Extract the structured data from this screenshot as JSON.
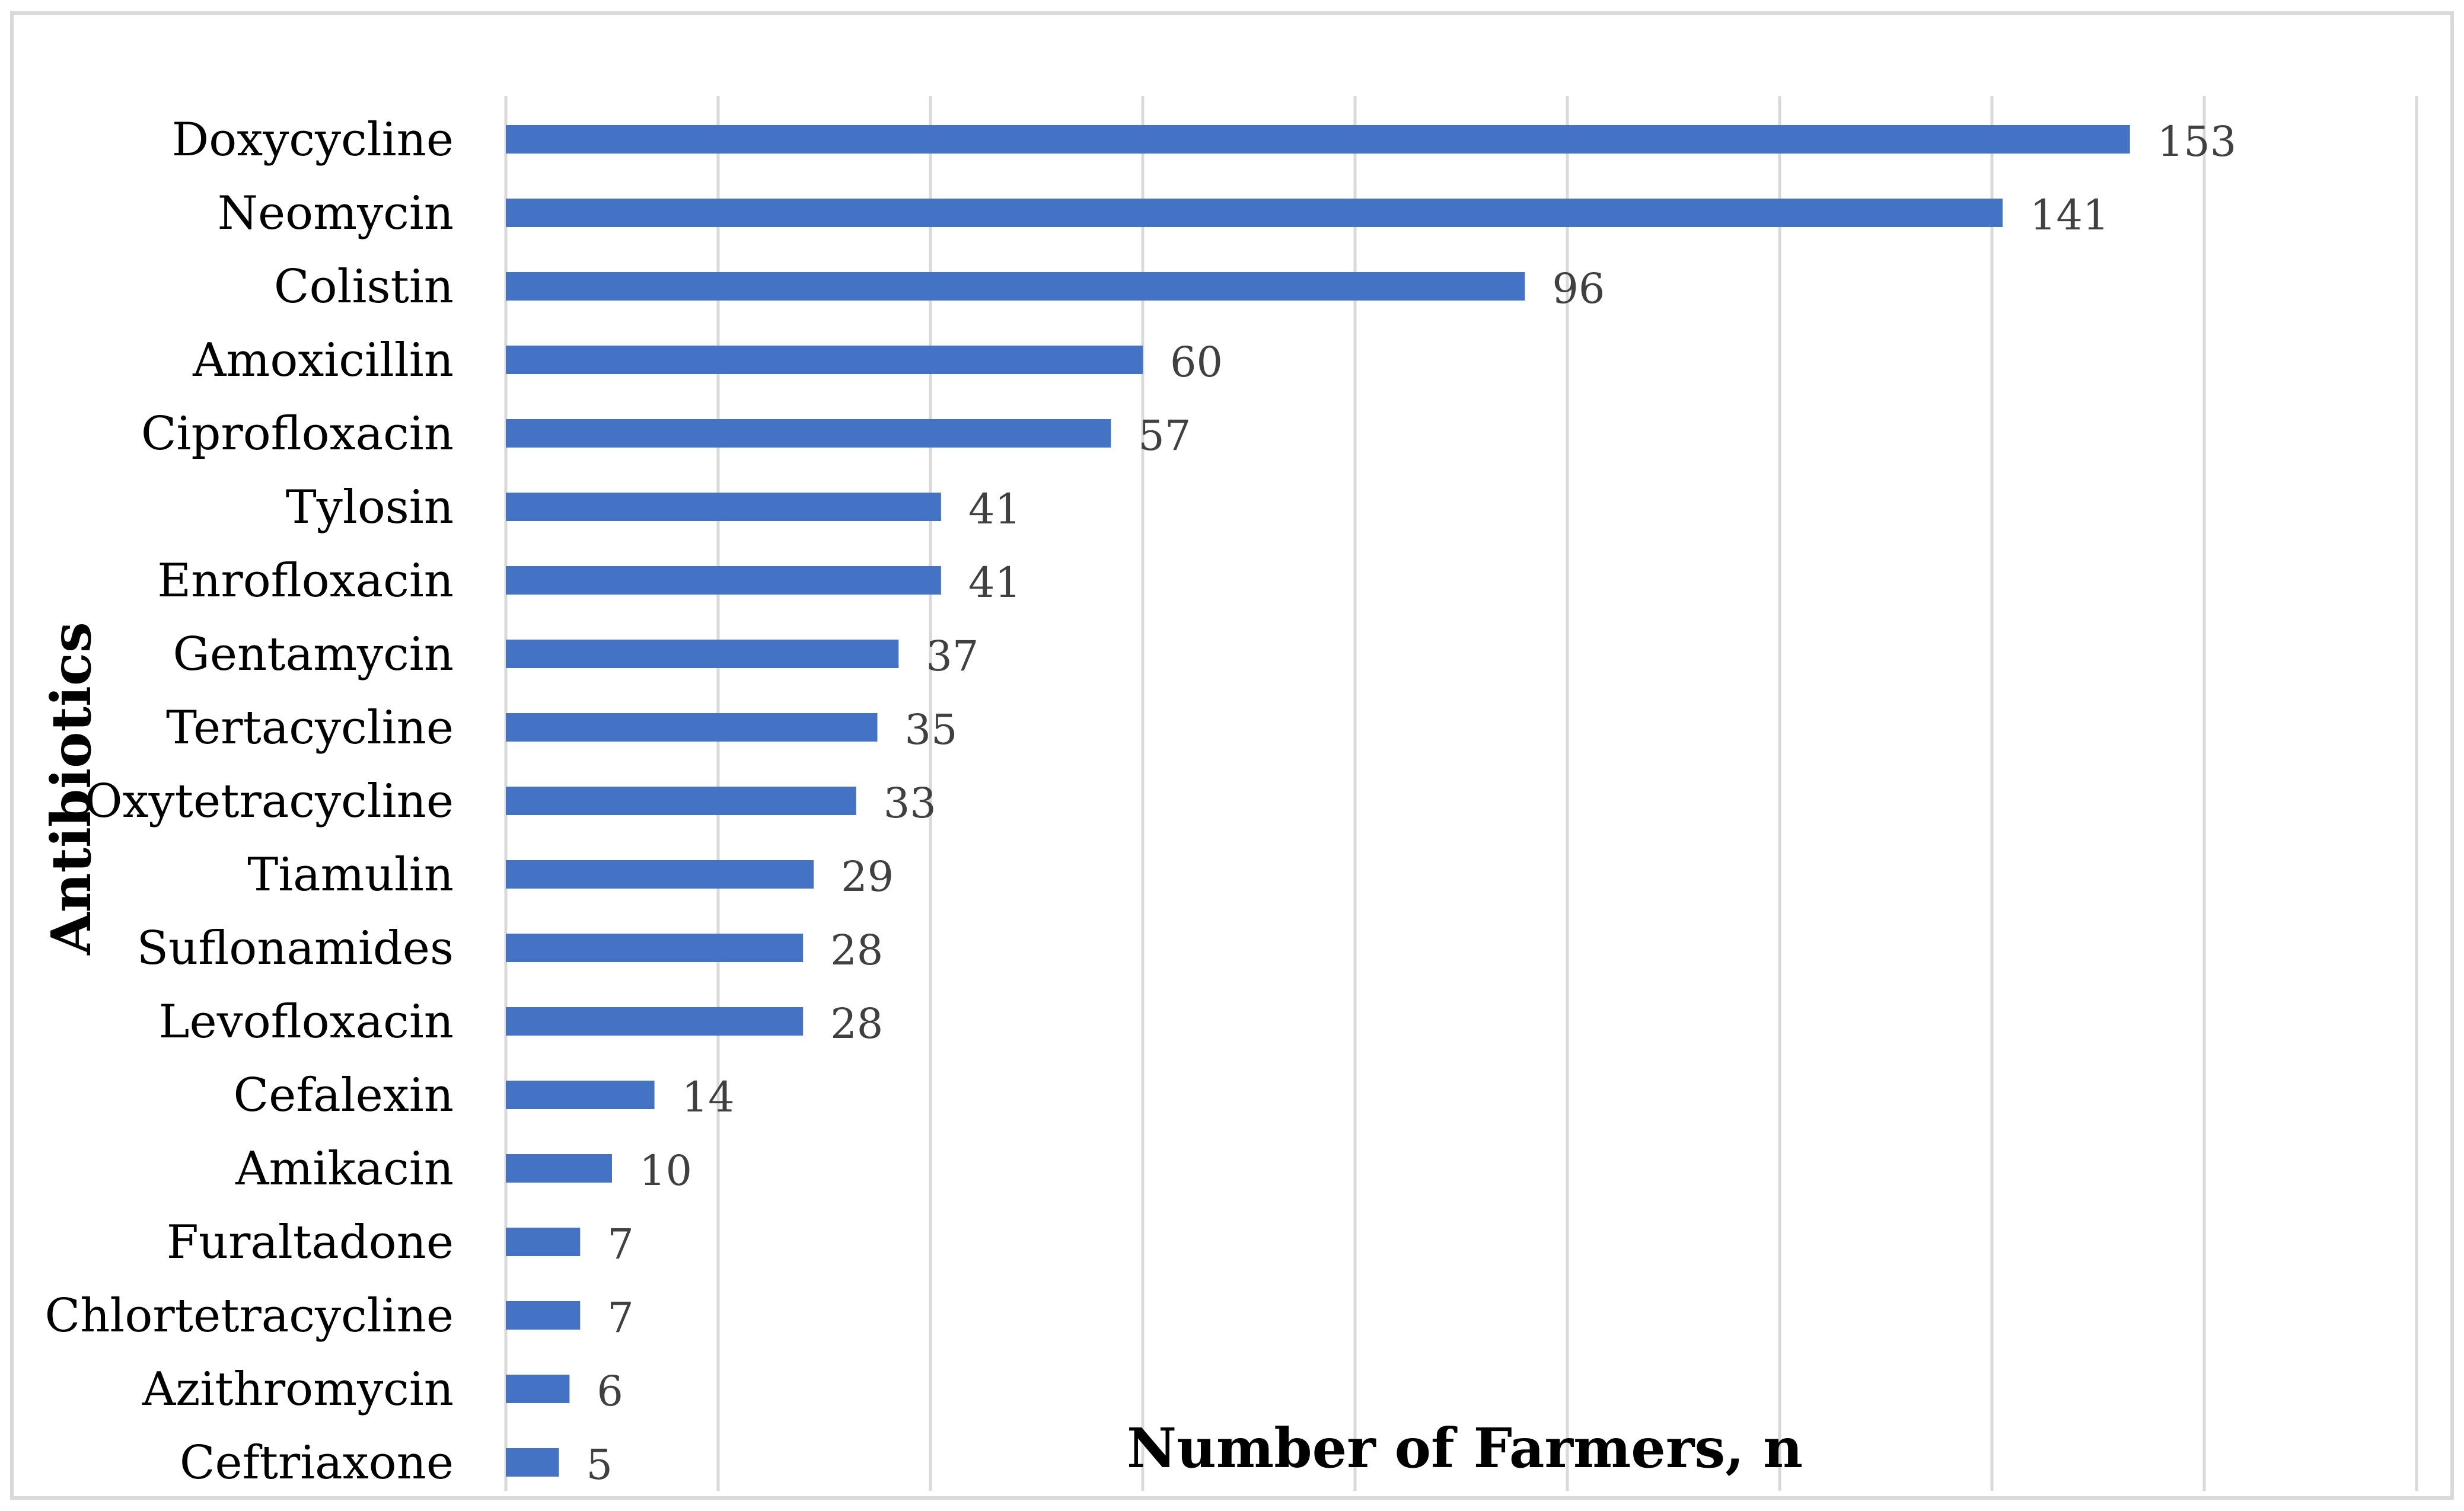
{
  "chart_data": {
    "type": "bar",
    "orientation": "horizontal",
    "xlabel": "Number of Farmers, n",
    "ylabel": "Antibiotics",
    "xlim": [
      0,
      180
    ],
    "grid": true,
    "legend": "none",
    "data_labels": true,
    "categories": [
      "Doxycycline",
      "Neomycin",
      "Colistin",
      "Amoxicillin",
      "Ciprofloxacin",
      "Tylosin",
      "Enrofloxacin",
      "Gentamycin",
      "Tertacycline",
      "Oxytetracycline",
      "Tiamulin",
      "Suflonamides",
      "Levofloxacin",
      "Cefalexin",
      "Amikacin",
      "Furaltadone",
      "Chlortetracycline",
      "Azithromycin",
      "Ceftriaxone"
    ],
    "values": [
      153,
      141,
      96,
      60,
      57,
      41,
      41,
      37,
      35,
      33,
      29,
      28,
      28,
      14,
      10,
      7,
      7,
      6,
      5
    ],
    "colors": {
      "bar": "#4472c4",
      "grid": "#d9d9d9",
      "value_label": "#404040"
    }
  }
}
